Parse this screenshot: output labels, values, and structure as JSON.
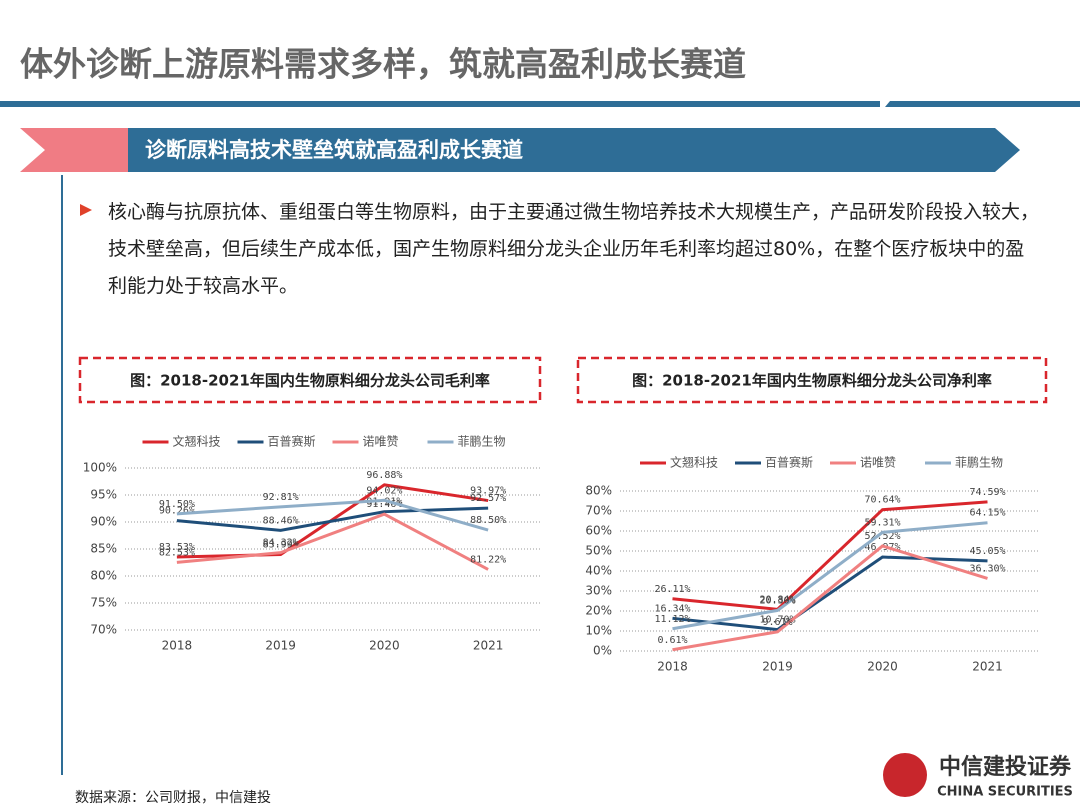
{
  "header": {
    "title": "体外诊断上游原料需求多样，筑就高盈利成长赛道",
    "banner": "诊断原料高技术壁垒筑就高盈利成长赛道",
    "bullet": "核心酶与抗原抗体、重组蛋白等生物原料，由于主要通过微生物培养技术大规模生产，产品研发阶段投入较大，技术壁垒高，但后续生产成本低，国产生物原料细分龙头企业历年毛利率均超过80%，在整个医疗板块中的盈利能力处于较高水平。"
  },
  "footer": {
    "source": "数据来源：公司财报，中信建投",
    "logo": "中信建投证券",
    "logo_en": "CHINA SECURITIES"
  },
  "chart_data": [
    {
      "type": "line",
      "title": "图：2018-2021年国内生物原料细分龙头公司毛利率",
      "categories": [
        "2018",
        "2019",
        "2020",
        "2021"
      ],
      "series": [
        {
          "name": "文翘科技",
          "color": "#d9262c",
          "values": [
            83.53,
            83.99,
            96.88,
            93.97
          ],
          "value_labels": [
            "83.53%",
            "83.99%",
            "96.88%",
            "93.97%"
          ]
        },
        {
          "name": "百普赛斯",
          "color": "#1f4e79",
          "values": [
            90.26,
            88.46,
            91.91,
            92.57
          ],
          "value_labels": [
            "90.26%",
            "88.46%",
            "91.91%",
            "92.57%"
          ]
        },
        {
          "name": "诺唯赞",
          "color": "#f08080",
          "values": [
            82.53,
            84.32,
            91.46,
            81.22
          ],
          "value_labels": [
            "82.53%",
            "84.32%",
            "91.46%",
            "81.22%"
          ]
        },
        {
          "name": "菲鹏生物",
          "color": "#8faec8",
          "values": [
            91.5,
            92.81,
            94.02,
            88.5
          ],
          "value_labels": [
            "91.50%",
            "92.81%",
            "94.02%",
            "88.50%"
          ]
        }
      ],
      "ylim": [
        70,
        100
      ],
      "yticks": [
        {
          "value": 70,
          "label": "70%"
        },
        {
          "value": 75,
          "label": "75%"
        },
        {
          "value": 80,
          "label": "80%"
        },
        {
          "value": 85,
          "label": "85%"
        },
        {
          "value": 90,
          "label": "90%"
        },
        {
          "value": 95,
          "label": "95%"
        },
        {
          "value": 100,
          "label": "100%"
        }
      ],
      "grid": true
    },
    {
      "type": "line",
      "title": "图：2018-2021年国内生物原料细分龙头公司净利率",
      "categories": [
        "2018",
        "2019",
        "2020",
        "2021"
      ],
      "series": [
        {
          "name": "文翘科技",
          "color": "#d9262c",
          "values": [
            26.11,
            20.84,
            70.64,
            74.59
          ],
          "value_labels": [
            "26.11%",
            "20.84%",
            "70.64%",
            "74.59%"
          ]
        },
        {
          "name": "百普赛斯",
          "color": "#1f4e79",
          "values": [
            16.34,
            10.7,
            46.97,
            45.05
          ],
          "value_labels": [
            "16.34%",
            "10.70%",
            "46.97%",
            "45.05%"
          ]
        },
        {
          "name": "诺唯赞",
          "color": "#f08080",
          "values": [
            0.61,
            9.61,
            52.52,
            36.3
          ],
          "value_labels": [
            "0.61%",
            "9.61%",
            "52.52%",
            "36.30%"
          ]
        },
        {
          "name": "菲鹏生物",
          "color": "#8faec8",
          "values": [
            11.12,
            20.3,
            59.31,
            64.15
          ],
          "value_labels": [
            "11.12%",
            "20.30%",
            "59.31%",
            "64.15%"
          ]
        }
      ],
      "ylim": [
        0,
        80
      ],
      "yticks": [
        {
          "value": 0,
          "label": "0%"
        },
        {
          "value": 10,
          "label": "10%"
        },
        {
          "value": 20,
          "label": "20%"
        },
        {
          "value": 30,
          "label": "30%"
        },
        {
          "value": 40,
          "label": "40%"
        },
        {
          "value": 50,
          "label": "50%"
        },
        {
          "value": 60,
          "label": "60%"
        },
        {
          "value": 70,
          "label": "70%"
        },
        {
          "value": 80,
          "label": "80%"
        }
      ],
      "grid": true
    }
  ]
}
